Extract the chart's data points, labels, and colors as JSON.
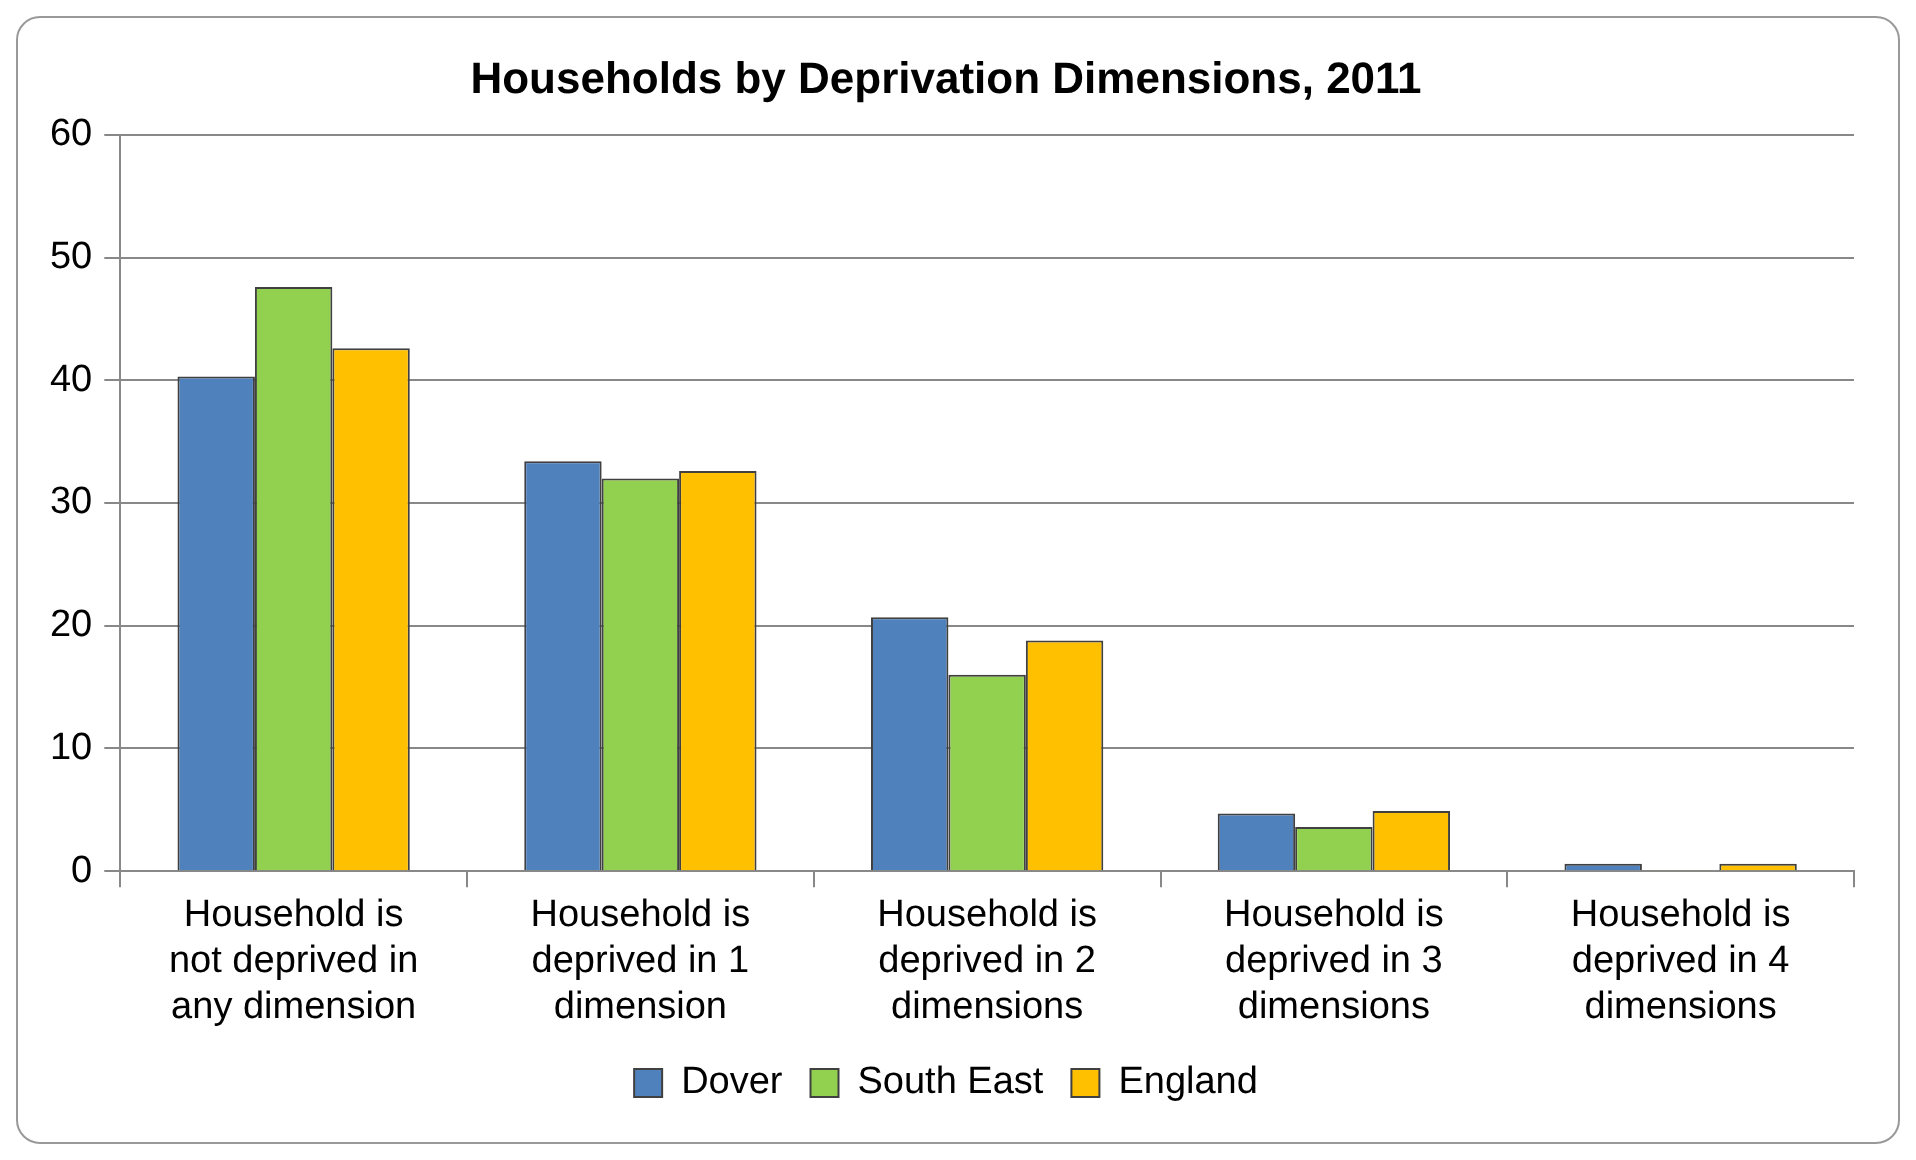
{
  "chart_data": {
    "type": "bar",
    "title": "Households by Deprivation Dimensions, 2011",
    "categories": [
      "Household is not deprived in any dimension",
      "Household is deprived in 1 dimension",
      "Household is deprived in 2 dimensions",
      "Household is deprived in 3 dimensions",
      "Household is deprived in 4 dimensions"
    ],
    "series": [
      {
        "name": "Dover",
        "color": "#4f81bd",
        "values": [
          40.3,
          33.4,
          20.7,
          4.7,
          0.6
        ]
      },
      {
        "name": "South East",
        "color": "#92d050",
        "values": [
          47.6,
          32.0,
          16.0,
          3.6,
          0.1
        ]
      },
      {
        "name": "England",
        "color": "#ffc000",
        "values": [
          42.6,
          32.6,
          18.8,
          4.9,
          0.6
        ]
      }
    ],
    "ylim": [
      0,
      60
    ],
    "yticks": [
      0,
      10,
      20,
      30,
      40,
      50,
      60
    ],
    "grid": "y",
    "legend": "bottom"
  }
}
